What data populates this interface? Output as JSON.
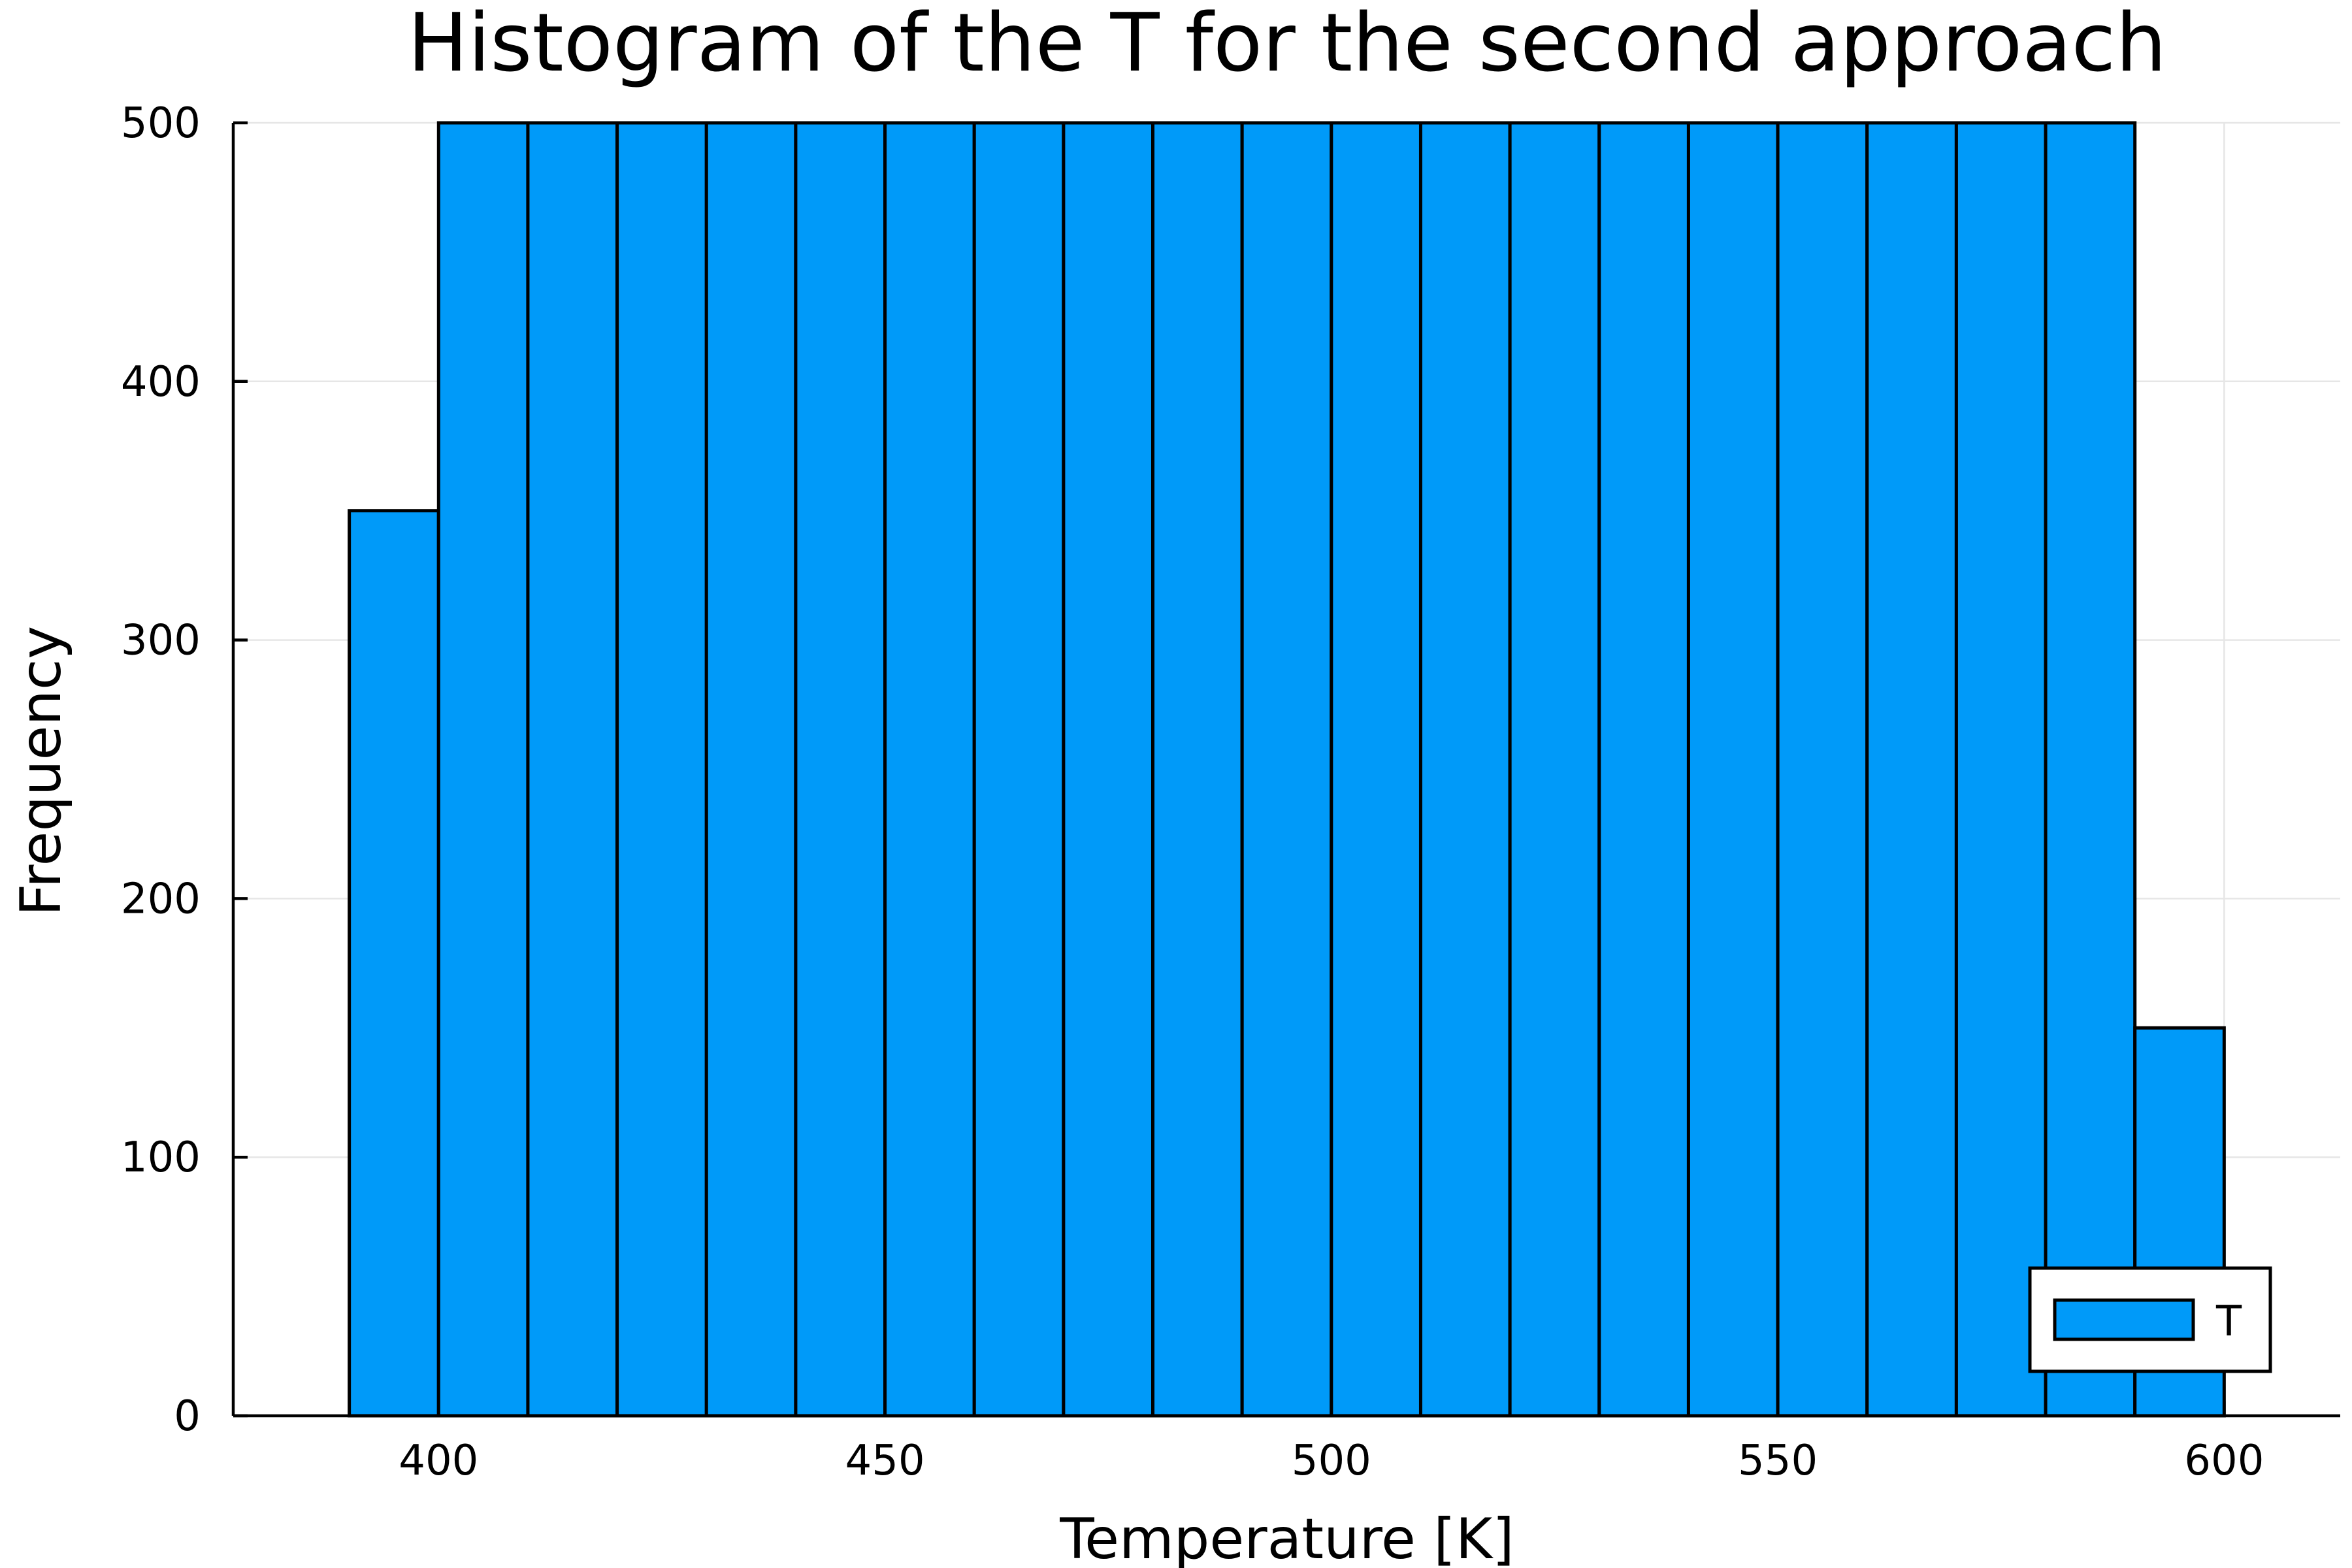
{
  "chart_data": {
    "type": "bar",
    "title": "Histogram of the T for the second approach",
    "xlabel": "Temperature [K]",
    "ylabel": "Frequency",
    "xlim": [
      377,
      613
    ],
    "ylim": [
      0,
      500
    ],
    "xticks": [
      400,
      450,
      500,
      550,
      600
    ],
    "yticks": [
      0,
      100,
      200,
      300,
      400,
      500
    ],
    "grid": true,
    "legend_position": "bottom-right",
    "bar_color": "#009af9",
    "series": [
      {
        "name": "T",
        "bins": [
          {
            "x0": 390,
            "x1": 400,
            "value": 350
          },
          {
            "x0": 400,
            "x1": 410,
            "value": 500
          },
          {
            "x0": 410,
            "x1": 420,
            "value": 500
          },
          {
            "x0": 420,
            "x1": 430,
            "value": 500
          },
          {
            "x0": 430,
            "x1": 440,
            "value": 500
          },
          {
            "x0": 440,
            "x1": 450,
            "value": 500
          },
          {
            "x0": 450,
            "x1": 460,
            "value": 500
          },
          {
            "x0": 460,
            "x1": 470,
            "value": 500
          },
          {
            "x0": 470,
            "x1": 480,
            "value": 500
          },
          {
            "x0": 480,
            "x1": 490,
            "value": 500
          },
          {
            "x0": 490,
            "x1": 500,
            "value": 500
          },
          {
            "x0": 500,
            "x1": 510,
            "value": 500
          },
          {
            "x0": 510,
            "x1": 520,
            "value": 500
          },
          {
            "x0": 520,
            "x1": 530,
            "value": 500
          },
          {
            "x0": 530,
            "x1": 540,
            "value": 500
          },
          {
            "x0": 540,
            "x1": 550,
            "value": 500
          },
          {
            "x0": 550,
            "x1": 560,
            "value": 500
          },
          {
            "x0": 560,
            "x1": 570,
            "value": 500
          },
          {
            "x0": 570,
            "x1": 580,
            "value": 500
          },
          {
            "x0": 580,
            "x1": 590,
            "value": 500
          },
          {
            "x0": 590,
            "x1": 600,
            "value": 150
          }
        ]
      }
    ]
  }
}
